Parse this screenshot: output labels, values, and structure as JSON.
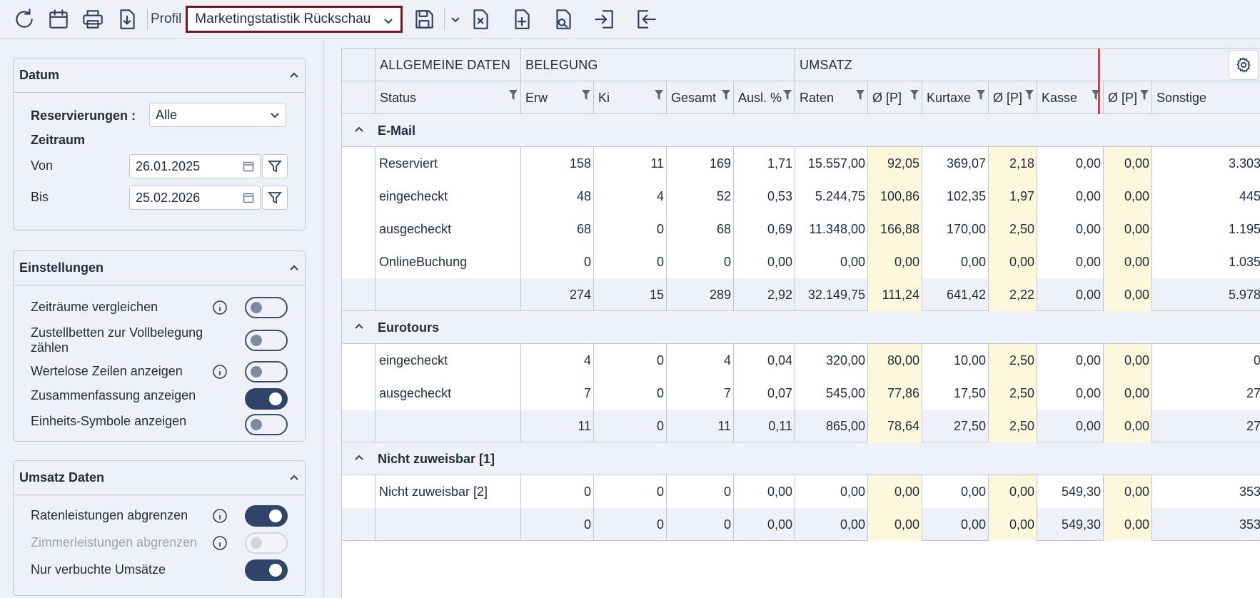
{
  "toolbar": {
    "profil_label": "Profil",
    "profil_value": "Marketingstatistik Rückschau"
  },
  "sidebar": {
    "datum": {
      "title": "Datum",
      "reservierungen_label": "Reservierungen :",
      "reservierungen_value": "Alle",
      "zeitraum_label": "Zeitraum",
      "von_label": "Von",
      "von_value": "26.01.2025",
      "bis_label": "Bis",
      "bis_value": "25.02.2026"
    },
    "einstellungen": {
      "title": "Einstellungen",
      "items": [
        {
          "label": "Zeiträume vergleichen",
          "on": false
        },
        {
          "label": "Zustellbetten zur Vollbelegung zählen",
          "on": false
        },
        {
          "label": "Wertelose Zeilen anzeigen",
          "on": false
        },
        {
          "label": "Zusammenfassung anzeigen",
          "on": true
        },
        {
          "label": "Einheits-Symbole anzeigen",
          "on": false
        }
      ]
    },
    "umsatz": {
      "title": "Umsatz Daten",
      "items": [
        {
          "label": "Ratenleistungen abgrenzen",
          "on": true
        },
        {
          "label": "Zimmerleistungen abgrenzen",
          "on": false,
          "disabled": true
        },
        {
          "label": "Nur verbuchte Umsätze",
          "on": true
        }
      ]
    }
  },
  "table": {
    "groups": [
      "ALLGEMEINE DATEN",
      "BELEGUNG",
      "UMSATZ"
    ],
    "columns": [
      "Status",
      "Erw",
      "Ki",
      "Gesamt",
      "Ausl. %",
      "Raten",
      "Ø [P]",
      "Kurtaxe",
      "Ø [P]",
      "Kasse",
      "Ø [P]",
      "Sonstige"
    ],
    "sections": [
      {
        "name": "E-Mail",
        "rows": [
          [
            "Reserviert",
            "158",
            "11",
            "169",
            "1,71",
            "15.557,00",
            "92,05",
            "369,07",
            "2,18",
            "0,00",
            "0,00",
            "3.303,"
          ],
          [
            "eingecheckt",
            "48",
            "4",
            "52",
            "0,53",
            "5.244,75",
            "100,86",
            "102,35",
            "1,97",
            "0,00",
            "0,00",
            "445,"
          ],
          [
            "ausgecheckt",
            "68",
            "0",
            "68",
            "0,69",
            "11.348,00",
            "166,88",
            "170,00",
            "2,50",
            "0,00",
            "0,00",
            "1.195,"
          ],
          [
            "OnlineBuchung",
            "0",
            "0",
            "0",
            "0,00",
            "0,00",
            "0,00",
            "0,00",
            "0,00",
            "0,00",
            "0,00",
            "1.035,"
          ]
        ],
        "sum": [
          "",
          "274",
          "15",
          "289",
          "2,92",
          "32.149,75",
          "111,24",
          "641,42",
          "2,22",
          "0,00",
          "0,00",
          "5.978,"
        ]
      },
      {
        "name": "Eurotours",
        "rows": [
          [
            "eingecheckt",
            "4",
            "0",
            "4",
            "0,04",
            "320,00",
            "80,00",
            "10,00",
            "2,50",
            "0,00",
            "0,00",
            "0,"
          ],
          [
            "ausgecheckt",
            "7",
            "0",
            "7",
            "0,07",
            "545,00",
            "77,86",
            "17,50",
            "2,50",
            "0,00",
            "0,00",
            "27,"
          ]
        ],
        "sum": [
          "",
          "11",
          "0",
          "11",
          "0,11",
          "865,00",
          "78,64",
          "27,50",
          "2,50",
          "0,00",
          "0,00",
          "27,"
        ]
      },
      {
        "name": "Nicht zuweisbar [1]",
        "rows": [
          [
            "Nicht zuweisbar [2]",
            "0",
            "0",
            "0",
            "0,00",
            "0,00",
            "0,00",
            "0,00",
            "0,00",
            "549,30",
            "0,00",
            "353,"
          ]
        ],
        "sum": [
          "",
          "0",
          "0",
          "0",
          "0,00",
          "0,00",
          "0,00",
          "0,00",
          "0,00",
          "549,30",
          "0,00",
          "353,"
        ]
      }
    ]
  }
}
